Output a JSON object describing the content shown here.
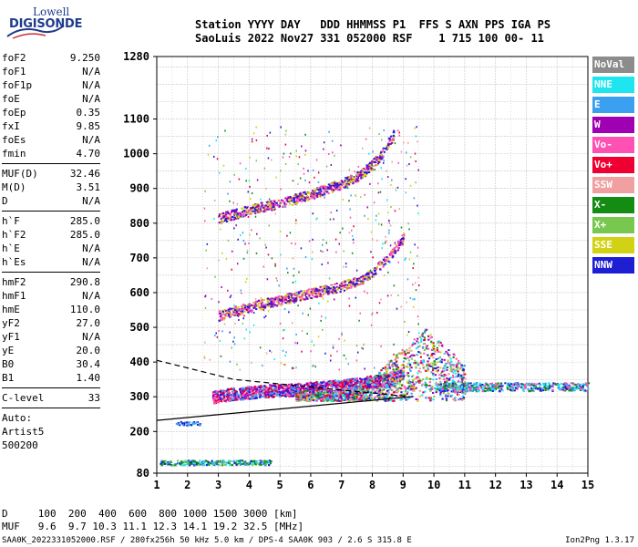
{
  "logo": {
    "line1": "Lowell",
    "line2": "DIGISONDE"
  },
  "header": {
    "line1": "Station YYYY DAY   DDD HHMMSS P1  FFS S AXN PPS IGA PS",
    "line2": "SaoLuis 2022 Nov27 331 052000 RSF    1 715 100 00- 11"
  },
  "params_group1": [
    {
      "k": "foF2",
      "v": "9.250"
    },
    {
      "k": "foF1",
      "v": "N/A"
    },
    {
      "k": "foF1p",
      "v": "N/A"
    },
    {
      "k": "foE",
      "v": "N/A"
    },
    {
      "k": "foEp",
      "v": "0.35"
    },
    {
      "k": "fxI",
      "v": "9.85"
    },
    {
      "k": "foEs",
      "v": "N/A"
    },
    {
      "k": "fmin",
      "v": "4.70"
    }
  ],
  "params_group2": [
    {
      "k": "MUF(D)",
      "v": "32.46"
    },
    {
      "k": "M(D)",
      "v": "3.51"
    },
    {
      "k": "D",
      "v": "N/A"
    }
  ],
  "params_group3": [
    {
      "k": "h`F",
      "v": "285.0"
    },
    {
      "k": "h`F2",
      "v": "285.0"
    },
    {
      "k": "h`E",
      "v": "N/A"
    },
    {
      "k": "h`Es",
      "v": "N/A"
    }
  ],
  "params_group4": [
    {
      "k": "hmF2",
      "v": "290.8"
    },
    {
      "k": "hmF1",
      "v": "N/A"
    },
    {
      "k": "hmE",
      "v": "110.0"
    },
    {
      "k": "yF2",
      "v": "27.0"
    },
    {
      "k": "yF1",
      "v": "N/A"
    },
    {
      "k": "yE",
      "v": "20.0"
    },
    {
      "k": "B0",
      "v": "30.4"
    },
    {
      "k": "B1",
      "v": "1.40"
    }
  ],
  "params_group5": [
    {
      "k": "C-level",
      "v": "33"
    }
  ],
  "auto": {
    "l1": "Auto:",
    "l2": "Artist5",
    "l3": "500200"
  },
  "legend": [
    {
      "label": "NoVal",
      "color": "#8c8c8c"
    },
    {
      "label": "NNE",
      "color": "#1ee6f0"
    },
    {
      "label": "E",
      "color": "#3ca0f0"
    },
    {
      "label": "W",
      "color": "#a000b4"
    },
    {
      "label": "Vo-",
      "color": "#ff50b4"
    },
    {
      "label": "Vo+",
      "color": "#f00032"
    },
    {
      "label": "SSW",
      "color": "#f0a0a0"
    },
    {
      "label": "X-",
      "color": "#148c14"
    },
    {
      "label": "X+",
      "color": "#78c850"
    },
    {
      "label": "SSE",
      "color": "#d2d214"
    },
    {
      "label": "NNW",
      "color": "#1e1ed2"
    }
  ],
  "footer": {
    "line1": "D     100  200  400  600  800 1000 1500 3000 [km]",
    "line2": "MUF   9.6  9.7 10.3 11.1 12.3 14.1 19.2 32.5 [MHz]",
    "line3": "SAA0K_2022331052000.RSF / 280fx256h 50 kHz 5.0 km / DPS-4 SAA0K 903 / 2.6 S 315.8 E",
    "version": "Ion2Png 1.3.17"
  },
  "chart_data": {
    "type": "scatter",
    "x_ticks": [
      1,
      2,
      3,
      4,
      5,
      6,
      7,
      8,
      9,
      10,
      11,
      12,
      13,
      14,
      15
    ],
    "y_ticks": [
      80,
      200,
      300,
      400,
      500,
      600,
      700,
      800,
      900,
      1000,
      1100,
      1280
    ],
    "x_range": [
      1,
      15
    ],
    "y_range": [
      80,
      1280
    ],
    "grid": true,
    "traces": [
      {
        "name": "O-trace 1st hop",
        "color_mix": [
          "#1e1ed2",
          "#a000b4",
          "#ff50b4",
          "#f00032",
          "#3ca0f0"
        ],
        "points_f": [
          2.8,
          3.5,
          4.5,
          5.5,
          6.5,
          7.5,
          8.0,
          8.5,
          8.8,
          9.0
        ],
        "points_h": [
          300,
          310,
          318,
          322,
          330,
          338,
          345,
          352,
          362,
          372
        ]
      },
      {
        "name": "F2 2nd hop",
        "color_mix": [
          "#1e1ed2",
          "#a000b4",
          "#ff50b4",
          "#d2d214"
        ],
        "points_f": [
          3.0,
          4.0,
          5.0,
          6.0,
          7.0,
          7.8,
          8.5,
          9.0
        ],
        "points_h": [
          535,
          560,
          580,
          600,
          620,
          645,
          700,
          760
        ]
      },
      {
        "name": "F2 3rd hop",
        "color_mix": [
          "#1e1ed2",
          "#a000b4",
          "#ff50b4",
          "#d2d214"
        ],
        "points_f": [
          3.0,
          4.0,
          5.0,
          6.0,
          7.0,
          7.6,
          8.2,
          8.7
        ],
        "points_h": [
          815,
          840,
          860,
          885,
          915,
          940,
          990,
          1060
        ]
      }
    ],
    "lines": [
      {
        "name": "profile-solid",
        "f": [
          1,
          9.25
        ],
        "h": [
          232,
          300
        ]
      },
      {
        "name": "profile-dashed",
        "f": [
          1,
          3.5,
          9.25
        ],
        "h": [
          405,
          350,
          300
        ]
      }
    ]
  }
}
